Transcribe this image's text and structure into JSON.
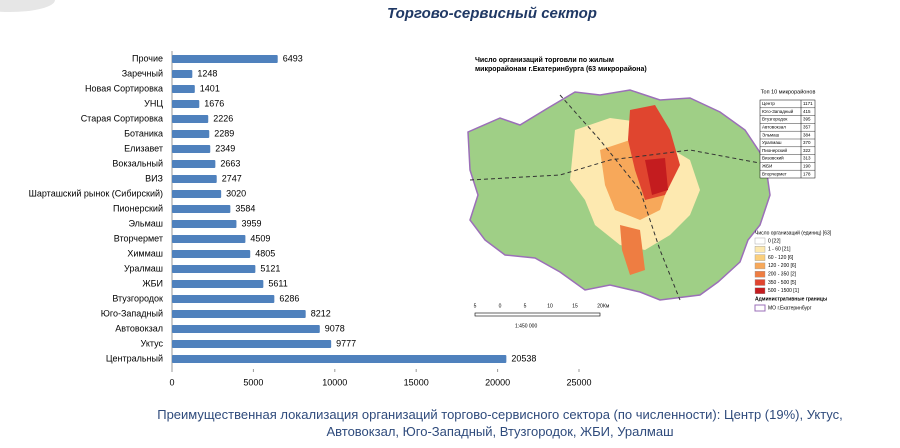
{
  "title": "Торгово-сервисный сектор",
  "caption": "Преимущественная локализация организаций торгово-сервисного сектора (по численности): Центр (19%), Уктус, Автовокзал, Юго-Западный, Втузгородок, ЖБИ, Уралмаш",
  "chart_data": {
    "type": "hbar",
    "color": "#4f81bd",
    "categories": [
      "Прочие",
      "Заречный",
      "Новая Сортировка",
      "УНЦ",
      "Старая Сортировка",
      "Ботаника",
      "Елизавет",
      "Вокзальный",
      "ВИЗ",
      "Шарташский рынок (Сибирский)",
      "Пионерский",
      "Эльмаш",
      "Вторчермет",
      "Химмаш",
      "Уралмаш",
      "ЖБИ",
      "Втузгородок",
      "Юго-Западный",
      "Автовокзал",
      "Уктус",
      "Центральный"
    ],
    "values": [
      6493,
      1248,
      1401,
      1676,
      2226,
      2289,
      2349,
      2663,
      2747,
      3020,
      3584,
      3959,
      4509,
      4805,
      5121,
      5611,
      6286,
      8212,
      9078,
      9777,
      20538
    ],
    "xlim": [
      0,
      25000
    ],
    "xticks": [
      0,
      5000,
      10000,
      15000,
      20000,
      25000
    ]
  },
  "map": {
    "title": [
      "Число организаций торговли по жилым",
      "микрорайонам г.Екатеринбурга (63 микрорайона)"
    ],
    "top10_title": "Топ 10 микрорайонов",
    "top10": [
      [
        "Центр",
        1171
      ],
      [
        "Юго-Западный",
        415
      ],
      [
        "Втузгородок",
        395
      ],
      [
        "Автовокзал",
        357
      ],
      [
        "Эльмаш",
        384
      ],
      [
        "Уралмаш",
        370
      ],
      [
        "Пионерский",
        322
      ],
      [
        "Визовский",
        313
      ],
      [
        "ЖБИ",
        190
      ],
      [
        "Вторчермет",
        178
      ]
    ],
    "legend_title": "Число организаций (единиц) [63]",
    "legend": [
      {
        "label": "0 [22]",
        "color": "#ffffff"
      },
      {
        "label": "1 - 60 [21]",
        "color": "#fde9b0"
      },
      {
        "label": "60 - 120 [6]",
        "color": "#fbcf7c"
      },
      {
        "label": "120 - 200 [6]",
        "color": "#f7a85a"
      },
      {
        "label": "200 - 350 [2]",
        "color": "#ee7d42"
      },
      {
        "label": "350 - 500 [5]",
        "color": "#e0452f"
      },
      {
        "label": "500 - 1500 [1]",
        "color": "#c41c1f"
      }
    ],
    "boundaries_title": "Административные границы",
    "boundary_label": "МО г.Екатеринбург",
    "scale_ticks": [
      "5",
      "0",
      "5",
      "10",
      "15",
      "20"
    ],
    "scale_unit": "Км",
    "scale_ratio": "1:450 000"
  }
}
